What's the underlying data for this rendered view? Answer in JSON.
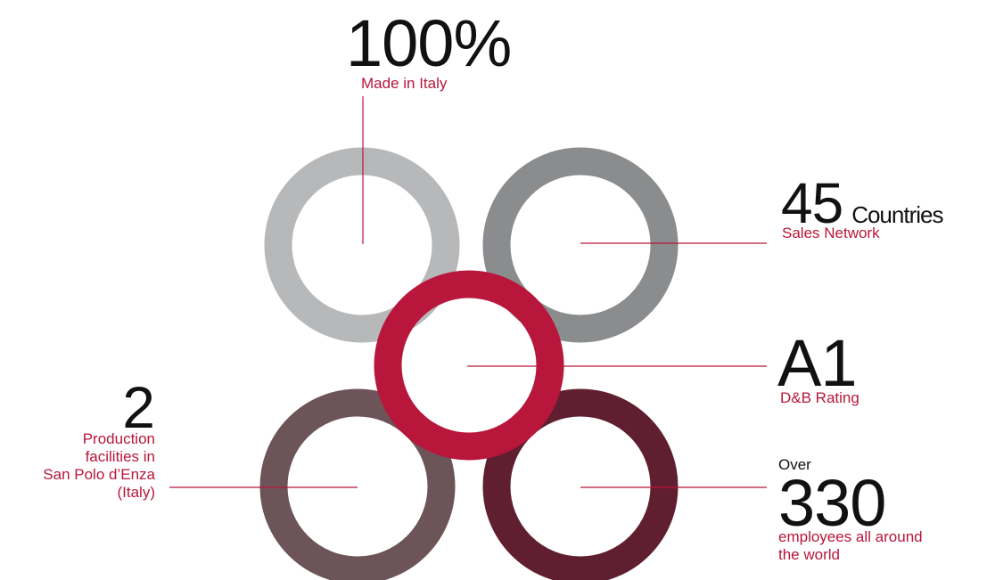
{
  "colors": {
    "ring_light_gray": "#b7b8b9",
    "ring_dark_gray": "#8b8c8d",
    "ring_red": "#b8163b",
    "ring_taupe": "#6c5459",
    "ring_wine": "#601f30",
    "leader_line": "#b8163b",
    "accent_text": "#b8163b"
  },
  "stats": {
    "italy": {
      "value": "100%",
      "label": "Made in Italy"
    },
    "countries": {
      "value": "45",
      "unit": "Countries",
      "label": "Sales Network"
    },
    "rating": {
      "value": "A1",
      "label": "D&B Rating"
    },
    "facilities": {
      "value": "2",
      "label_lines": [
        "Production",
        "facilities in",
        "San Polo d’Enza",
        "(Italy)"
      ]
    },
    "employees": {
      "prefix": "Over",
      "value": "330",
      "label_lines": [
        "employees all around",
        "the world"
      ]
    }
  }
}
